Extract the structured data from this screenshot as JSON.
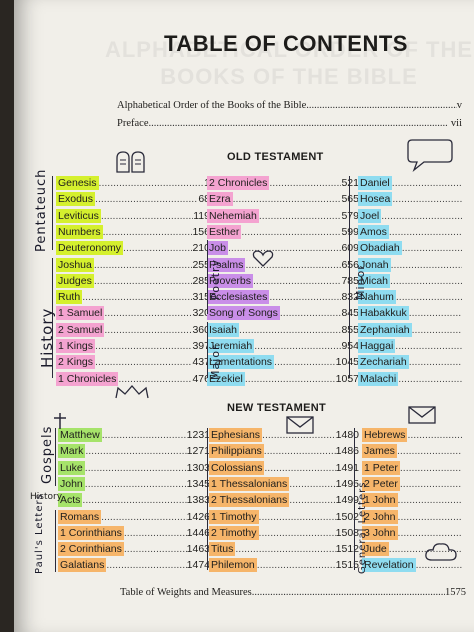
{
  "background_title": [
    "ALPHABETICAL ORDER OF THE",
    "BOOKS OF THE BIBLE"
  ],
  "title": "TABLE OF CONTENTS",
  "front_matter": [
    {
      "label": "Alphabetical Order of the Books of the Bible",
      "page": "v"
    },
    {
      "label": "Preface",
      "page": "vii"
    }
  ],
  "old_testament": {
    "heading": "OLD TESTAMENT",
    "col1": [
      {
        "name": "Genesis",
        "page": "1"
      },
      {
        "name": "Exodus",
        "page": "68"
      },
      {
        "name": "Leviticus",
        "page": "119"
      },
      {
        "name": "Numbers",
        "page": "156"
      },
      {
        "name": "Deuteronomy",
        "page": "210"
      },
      {
        "name": "Joshua",
        "page": "255"
      },
      {
        "name": "Judges",
        "page": "285"
      },
      {
        "name": "Ruth",
        "page": "315"
      },
      {
        "name": "1 Samuel",
        "page": "320"
      },
      {
        "name": "2 Samuel",
        "page": "360"
      },
      {
        "name": "1 Kings",
        "page": "397"
      },
      {
        "name": "2 Kings",
        "page": "437"
      },
      {
        "name": "1 Chronicles",
        "page": "476"
      }
    ],
    "col2": [
      {
        "name": "2 Chronicles",
        "page": "521"
      },
      {
        "name": "Ezra",
        "page": "565"
      },
      {
        "name": "Nehemiah",
        "page": "579"
      },
      {
        "name": "Esther",
        "page": "599"
      },
      {
        "name": "Job",
        "page": "609"
      },
      {
        "name": "Psalms",
        "page": "656"
      },
      {
        "name": "Proverbs",
        "page": "785"
      },
      {
        "name": "Ecclesiastes",
        "page": "832"
      },
      {
        "name": "Song of Songs",
        "page": "845"
      },
      {
        "name": "Isaiah",
        "page": "855"
      },
      {
        "name": "Jeremiah",
        "page": "954"
      },
      {
        "name": "Lamentations",
        "page": "1045"
      },
      {
        "name": "Ezekiel",
        "page": "1057"
      }
    ],
    "col3": [
      {
        "name": "Daniel",
        "page": ""
      },
      {
        "name": "Hosea",
        "page": ""
      },
      {
        "name": "Joel",
        "page": ""
      },
      {
        "name": "Amos",
        "page": ""
      },
      {
        "name": "Obadiah",
        "page": ""
      },
      {
        "name": "Jonah",
        "page": ""
      },
      {
        "name": "Micah",
        "page": ""
      },
      {
        "name": "Nahum",
        "page": ""
      },
      {
        "name": "Habakkuk",
        "page": ""
      },
      {
        "name": "Zephaniah",
        "page": ""
      },
      {
        "name": "Haggai",
        "page": ""
      },
      {
        "name": "Zechariah",
        "page": ""
      },
      {
        "name": "Malachi",
        "page": ""
      }
    ]
  },
  "new_testament": {
    "heading": "NEW TESTAMENT",
    "col1": [
      {
        "name": "Matthew",
        "page": "1231"
      },
      {
        "name": "Mark",
        "page": "1271"
      },
      {
        "name": "Luke",
        "page": "1303"
      },
      {
        "name": "John",
        "page": "1345"
      },
      {
        "name": "Acts",
        "page": "1383"
      },
      {
        "name": "Romans",
        "page": "1426"
      },
      {
        "name": "1 Corinthians",
        "page": "1446"
      },
      {
        "name": "2 Corinthians",
        "page": "1463"
      },
      {
        "name": "Galatians",
        "page": "1474"
      }
    ],
    "col2": [
      {
        "name": "Ephesians",
        "page": "1480"
      },
      {
        "name": "Philippians",
        "page": "1486"
      },
      {
        "name": "Colossians",
        "page": "1491"
      },
      {
        "name": "1 Thessalonians",
        "page": "1495"
      },
      {
        "name": "2 Thessalonians",
        "page": "1499"
      },
      {
        "name": "1 Timothy",
        "page": "1502"
      },
      {
        "name": "2 Timothy",
        "page": "1508"
      },
      {
        "name": "Titus",
        "page": "1512"
      },
      {
        "name": "Philemon",
        "page": "1515"
      }
    ],
    "col3": [
      {
        "name": "Hebrews",
        "page": ""
      },
      {
        "name": "James",
        "page": ""
      },
      {
        "name": "1 Peter",
        "page": ""
      },
      {
        "name": "2 Peter",
        "page": ""
      },
      {
        "name": "1 John",
        "page": ""
      },
      {
        "name": "2 John",
        "page": ""
      },
      {
        "name": "3 John",
        "page": ""
      },
      {
        "name": "Jude",
        "page": ""
      },
      {
        "name": "Revelation",
        "page": ""
      }
    ]
  },
  "back_matter": {
    "label": "Table of Weights and Measures",
    "page": "1575"
  },
  "annotations": {
    "pentateuch": "Pentateuch",
    "history": "History",
    "poetry": "Poetry",
    "major": "Major",
    "minor": "Minor",
    "gospels": "Gospels",
    "nt_history": "History",
    "pauls_letters": "Paul's Letters",
    "general_letters": "General Letters"
  },
  "colors": {
    "green": "#d5f02e",
    "pink": "#f4a3d0",
    "purple": "#c98ee8",
    "blue": "#8fdcf0",
    "orange": "#f6b56a",
    "light_green": "#a6e36a"
  }
}
